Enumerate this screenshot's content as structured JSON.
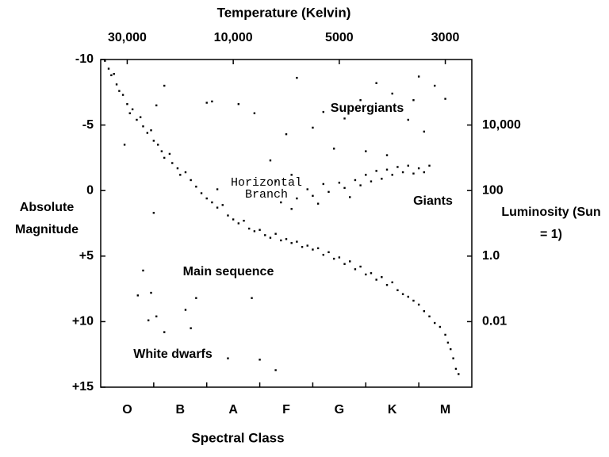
{
  "chart_data": {
    "type": "scatter",
    "title": "Temperature (Kelvin)",
    "xlabel": "Spectral Class",
    "ylabel": "Absolute Magnitude",
    "y2label": "Luminosity (Sun = 1)",
    "categories": [
      "O",
      "B",
      "A",
      "F",
      "G",
      "K",
      "M"
    ],
    "xlim": [
      0,
      7
    ],
    "x2ticks": [
      {
        "value": 30000,
        "label": "30,000",
        "x": 0.5
      },
      {
        "value": 10000,
        "label": "10,000",
        "x": 2.5
      },
      {
        "value": 5000,
        "label": "5000",
        "x": 4.5
      },
      {
        "value": 3000,
        "label": "3000",
        "x": 6.5
      }
    ],
    "ylim": [
      -10,
      15
    ],
    "y_inverted": true,
    "yticks": [
      -10,
      -5,
      0,
      {
        "value": 5,
        "label": "+5"
      },
      {
        "value": 10,
        "label": "+10"
      },
      {
        "value": 15,
        "label": "+15"
      }
    ],
    "y2lim": [
      1000000,
      0.0001
    ],
    "y2log": true,
    "y2ticks": [
      {
        "value": 10000,
        "label": "10,000"
      },
      100,
      {
        "value": 1,
        "label": "1.0"
      },
      0.01
    ],
    "color": "#000000",
    "annotations": [
      "Supergiants",
      "Horizontal Branch",
      "Giants",
      "Main sequence",
      "White dwarfs"
    ],
    "x": [
      0.08,
      0.15,
      0.2,
      0.25,
      0.3,
      0.35,
      0.42,
      0.5,
      0.55,
      0.6,
      0.68,
      0.75,
      0.8,
      0.88,
      0.95,
      1.0,
      1.08,
      1.15,
      1.2,
      1.3,
      1.35,
      1.45,
      1.5,
      1.6,
      1.7,
      1.8,
      1.9,
      2.0,
      2.1,
      2.2,
      2.3,
      2.4,
      2.5,
      2.6,
      2.7,
      2.8,
      2.9,
      3.0,
      3.1,
      3.2,
      3.3,
      3.4,
      3.5,
      3.6,
      3.7,
      3.8,
      3.9,
      4.0,
      4.1,
      4.2,
      4.3,
      4.4,
      4.5,
      4.6,
      4.7,
      4.8,
      4.9,
      5.0,
      5.1,
      5.2,
      5.3,
      5.4,
      5.5,
      5.6,
      5.7,
      5.8,
      5.9,
      6.0,
      6.1,
      6.2,
      6.3,
      6.4,
      6.5,
      6.55,
      6.6,
      6.65,
      6.7,
      6.75,
      3.7,
      3.9,
      4.0,
      4.2,
      4.3,
      4.5,
      4.6,
      4.8,
      4.9,
      5.0,
      5.1,
      5.2,
      5.3,
      5.4,
      5.5,
      5.6,
      5.7,
      5.8,
      5.9,
      6.0,
      6.1,
      6.2,
      3.6,
      4.1,
      4.7,
      1.2,
      2.0,
      2.6,
      3.5,
      4.0,
      3.7,
      4.2,
      4.6,
      4.9,
      5.2,
      5.5,
      5.8,
      6.0,
      6.3,
      6.5,
      6.1,
      5.0,
      4.4,
      5.4,
      3.2,
      2.9,
      5.9,
      3.4,
      3.6,
      3.3,
      2.2,
      1.0,
      0.45,
      1.05,
      2.1,
      0.8,
      0.7,
      0.95,
      1.05,
      1.2,
      1.6,
      1.7,
      1.8,
      2.4,
      2.85,
      3.0,
      3.3,
      0.9
    ],
    "values": [
      -9.9,
      -9.3,
      -8.8,
      -8.9,
      -8.1,
      -7.6,
      -7.3,
      -6.6,
      -5.9,
      -6.2,
      -5.4,
      -5.6,
      -4.9,
      -4.4,
      -4.6,
      -3.8,
      -3.5,
      -3.0,
      -2.5,
      -2.8,
      -2.1,
      -1.7,
      -1.2,
      -1.4,
      -0.8,
      -0.3,
      0.2,
      0.6,
      0.9,
      1.3,
      1.1,
      1.9,
      2.2,
      2.5,
      2.3,
      2.9,
      3.1,
      3.0,
      3.4,
      3.6,
      3.3,
      3.8,
      3.7,
      4.0,
      3.9,
      4.3,
      4.2,
      4.5,
      4.4,
      4.9,
      4.7,
      5.2,
      5.1,
      5.6,
      5.4,
      6.0,
      5.8,
      6.4,
      6.3,
      6.8,
      6.6,
      7.2,
      7.0,
      7.6,
      7.9,
      8.1,
      8.4,
      8.7,
      9.2,
      9.6,
      10.1,
      10.4,
      11.0,
      11.6,
      12.1,
      12.8,
      13.6,
      14.0,
      0.6,
      -0.1,
      0.4,
      -0.5,
      0.1,
      -0.6,
      -0.2,
      -0.8,
      -0.4,
      -1.2,
      -0.7,
      -1.5,
      -0.9,
      -1.6,
      -1.2,
      -1.8,
      -1.4,
      -1.9,
      -1.3,
      -1.7,
      -1.4,
      -1.9,
      1.4,
      1.0,
      0.5,
      -8.0,
      -6.7,
      -6.6,
      -4.3,
      -4.8,
      -8.6,
      -6.0,
      -5.5,
      -6.9,
      -8.2,
      -7.4,
      -5.4,
      -8.7,
      -8.0,
      -7.0,
      -4.5,
      -3.0,
      -3.2,
      -2.7,
      -2.3,
      -5.9,
      -6.9,
      0.9,
      -1.2,
      -0.7,
      -0.1,
      1.7,
      -3.5,
      -6.5,
      -6.8,
      6.1,
      8.0,
      7.8,
      9.6,
      10.8,
      9.1,
      10.5,
      8.2,
      12.8,
      8.2,
      12.9,
      13.7,
      9.9
    ]
  }
}
